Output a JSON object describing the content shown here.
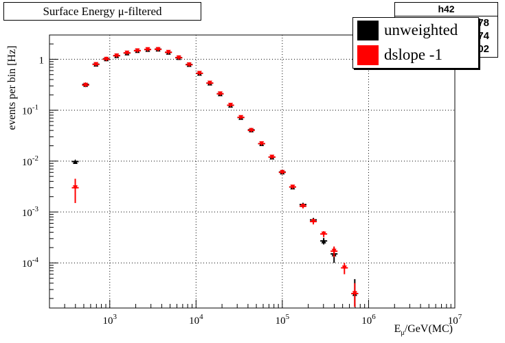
{
  "legend": [
    {
      "label": "unweighted",
      "color": "#000000"
    },
    {
      "label": "dslope -1",
      "color": "#ff0000"
    }
  ],
  "stats": {
    "title": "h42",
    "rows": [
      "78",
      "74",
      "02"
    ]
  },
  "axis": {
    "xlabel_main": "E",
    "xlabel_sub": "μ",
    "xlabel_tail": "/GeV(MC)"
  },
  "chart_data": {
    "type": "scatter",
    "title": "Surface Energy μ-filtered",
    "xlabel": "Eμ/GeV(MC)",
    "ylabel": "events per bin [Hz]",
    "x_scale": "log",
    "y_scale": "log",
    "xlim": [
      200,
      10000000
    ],
    "ylim": [
      1.3e-05,
      3
    ],
    "grid": true,
    "legend_position": "top-right",
    "x_tick_labels": [
      {
        "value": 1000,
        "mantissa": "10",
        "exp": "3"
      },
      {
        "value": 10000,
        "mantissa": "10",
        "exp": "4"
      },
      {
        "value": 100000,
        "mantissa": "10",
        "exp": "5"
      },
      {
        "value": 1000000,
        "mantissa": "10",
        "exp": "6"
      },
      {
        "value": 10000000,
        "mantissa": "10",
        "exp": "7"
      }
    ],
    "y_tick_labels": [
      {
        "value": 1,
        "mantissa": "1",
        "exp": ""
      },
      {
        "value": 0.1,
        "mantissa": "10",
        "exp": "-1"
      },
      {
        "value": 0.01,
        "mantissa": "10",
        "exp": "-2"
      },
      {
        "value": 0.001,
        "mantissa": "10",
        "exp": "-3"
      },
      {
        "value": 0.0001,
        "mantissa": "10",
        "exp": "-4"
      }
    ],
    "bin_half_width_log10": 0.04,
    "series": [
      {
        "name": "unweighted",
        "color": "#000000",
        "marker": "triangle-up",
        "points": [
          {
            "x": 398,
            "y": 0.0098
          },
          {
            "x": 525,
            "y": 0.32
          },
          {
            "x": 692,
            "y": 0.8
          },
          {
            "x": 912,
            "y": 1.02
          },
          {
            "x": 1202,
            "y": 1.18
          },
          {
            "x": 1585,
            "y": 1.33
          },
          {
            "x": 2089,
            "y": 1.48
          },
          {
            "x": 2754,
            "y": 1.56
          },
          {
            "x": 3631,
            "y": 1.58
          },
          {
            "x": 4786,
            "y": 1.37
          },
          {
            "x": 6310,
            "y": 1.08
          },
          {
            "x": 8318,
            "y": 0.79
          },
          {
            "x": 10965,
            "y": 0.53
          },
          {
            "x": 14454,
            "y": 0.34
          },
          {
            "x": 19055,
            "y": 0.21
          },
          {
            "x": 25119,
            "y": 0.125
          },
          {
            "x": 33113,
            "y": 0.072
          },
          {
            "x": 43652,
            "y": 0.041
          },
          {
            "x": 57544,
            "y": 0.022
          },
          {
            "x": 75858,
            "y": 0.012
          },
          {
            "x": 100000,
            "y": 0.0061
          },
          {
            "x": 131826,
            "y": 0.0031
          },
          {
            "x": 173780,
            "y": 0.0014
          },
          {
            "x": 229087,
            "y": 0.0007
          },
          {
            "x": 301995,
            "y": 0.00027
          },
          {
            "x": 398107,
            "y": 0.00015
          },
          {
            "x": 691831,
            "y": 2.5e-05
          }
        ],
        "y_err": [
          0.0004,
          0.01,
          0.02,
          0.02,
          0.02,
          0.02,
          0.03,
          0.03,
          0.03,
          0.03,
          0.02,
          0.02,
          0.01,
          0.008,
          0.005,
          0.003,
          0.002,
          0.001,
          0.0006,
          0.0004,
          0.0002,
          0.00015,
          8e-05,
          6e-05,
          4e-05,
          5e-05,
          2.3e-05
        ]
      },
      {
        "name": "dslope -1",
        "color": "#ff0000",
        "marker": "triangle-down",
        "points": [
          {
            "x": 398,
            "y": 0.003
          },
          {
            "x": 525,
            "y": 0.31
          },
          {
            "x": 692,
            "y": 0.79
          },
          {
            "x": 912,
            "y": 1.0
          },
          {
            "x": 1202,
            "y": 1.17
          },
          {
            "x": 1585,
            "y": 1.33
          },
          {
            "x": 2089,
            "y": 1.47
          },
          {
            "x": 2754,
            "y": 1.55
          },
          {
            "x": 3631,
            "y": 1.56
          },
          {
            "x": 4786,
            "y": 1.37
          },
          {
            "x": 6310,
            "y": 1.07
          },
          {
            "x": 8318,
            "y": 0.78
          },
          {
            "x": 10965,
            "y": 0.53
          },
          {
            "x": 14454,
            "y": 0.34
          },
          {
            "x": 19055,
            "y": 0.21
          },
          {
            "x": 25119,
            "y": 0.125
          },
          {
            "x": 33113,
            "y": 0.072
          },
          {
            "x": 43652,
            "y": 0.04
          },
          {
            "x": 57544,
            "y": 0.022
          },
          {
            "x": 75858,
            "y": 0.012
          },
          {
            "x": 100000,
            "y": 0.006
          },
          {
            "x": 131826,
            "y": 0.0031
          },
          {
            "x": 173780,
            "y": 0.0013
          },
          {
            "x": 229087,
            "y": 0.00065
          },
          {
            "x": 301995,
            "y": 0.00037
          },
          {
            "x": 398107,
            "y": 0.00017
          },
          {
            "x": 524807,
            "y": 8e-05
          },
          {
            "x": 691831,
            "y": 2.5e-05
          }
        ],
        "y_err": [
          0.0015,
          0.02,
          0.03,
          0.03,
          0.03,
          0.03,
          0.04,
          0.04,
          0.04,
          0.04,
          0.03,
          0.03,
          0.02,
          0.012,
          0.008,
          0.005,
          0.003,
          0.002,
          0.001,
          0.0006,
          0.0003,
          0.0002,
          0.00012,
          8e-05,
          5e-05,
          4e-05,
          2e-05,
          1.5e-05
        ]
      }
    ]
  }
}
